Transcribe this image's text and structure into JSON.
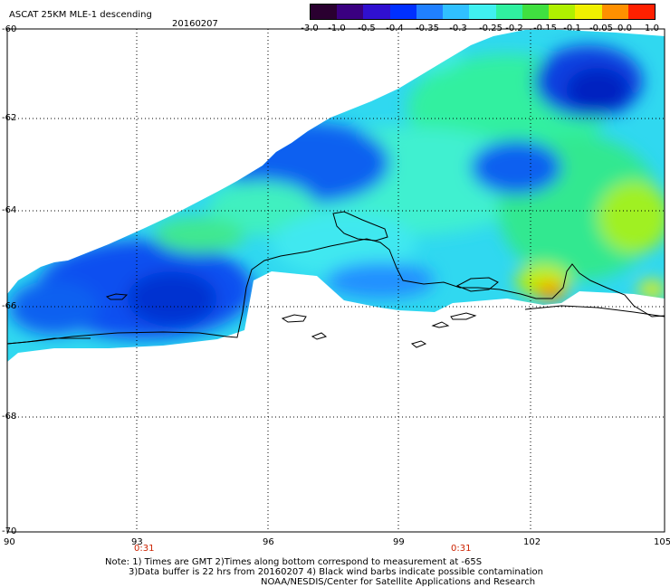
{
  "header": {
    "title": "ASCAT 25KM MLE-1 descending",
    "date": "20160207"
  },
  "colorbar": {
    "labels": [
      "-3.0",
      "-1.0",
      "-0.5",
      "-0.4",
      "-0.35",
      "-0.3",
      "-0.25",
      "-0.2",
      "-0.15",
      "-0.1",
      "-0.05",
      "0.0",
      "1.0"
    ],
    "colors": [
      "#2a0030",
      "#3a0080",
      "#3010d0",
      "#0030ff",
      "#2080ff",
      "#30c0ff",
      "#40f0f0",
      "#30f0a0",
      "#40e040",
      "#b0f000",
      "#f0f000",
      "#ff9000",
      "#ff2000"
    ]
  },
  "map": {
    "lat_labels": [
      "-60",
      "-62",
      "-64",
      "-66",
      "-68",
      "-70"
    ],
    "lon_labels": [
      "90",
      "93",
      "96",
      "99",
      "102",
      "105"
    ],
    "time_labels": [
      "0:31",
      "0:31"
    ]
  },
  "notes": {
    "line1": "Note: 1) Times are GMT 2)Times along bottom correspond to measurement at -65S",
    "line2": "3)Data buffer is 22 hrs from 20160207 4) Black wind barbs indicate possible contamination",
    "line3": "NOAA/NESDIS/Center for Satellite Applications and Research"
  }
}
